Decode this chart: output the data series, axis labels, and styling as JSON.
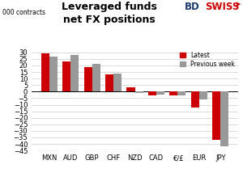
{
  "title": "Leveraged funds\nnet FX positions",
  "ylabel": "000 contracts",
  "categories": [
    "MXN",
    "AUD",
    "GBP",
    "CHF",
    "NZD",
    "CAD",
    "€/£",
    "EUR",
    "JPY"
  ],
  "latest": [
    29,
    23,
    19,
    13,
    3,
    -3,
    -3,
    -12,
    -37
  ],
  "previous_week": [
    27,
    28,
    21,
    14,
    -1,
    -2,
    -3,
    -6,
    -42
  ],
  "bar_color_latest": "#cc0000",
  "bar_color_prev": "#999999",
  "ylim": [
    -45,
    33
  ],
  "yticks": [
    -45,
    -40,
    -35,
    -30,
    -25,
    -20,
    -15,
    -10,
    -5,
    0,
    5,
    10,
    15,
    20,
    25,
    30
  ],
  "legend_latest": "Latest",
  "legend_prev": "Previous week",
  "background_color": "#ffffff",
  "bdswiss_color_bd": "#1a3a6b",
  "bdswiss_color_swiss": "#cc0000"
}
